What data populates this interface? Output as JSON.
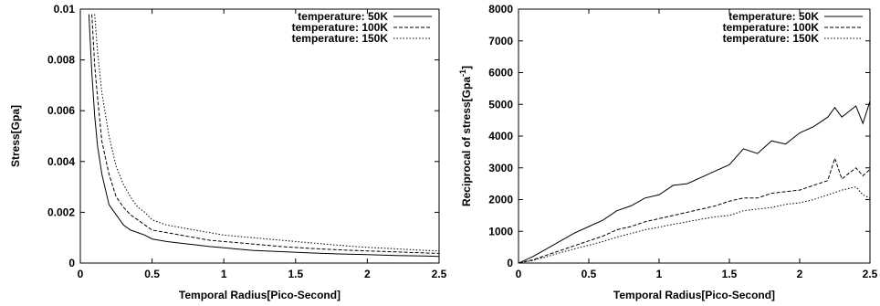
{
  "chart_data": [
    {
      "type": "line",
      "xlabel": "Temporal Radius[Pico-Second]",
      "ylabel": "Stress[Gpa]",
      "xlim": [
        0,
        2.5
      ],
      "ylim": [
        0,
        0.01
      ],
      "xticks": [
        "0",
        "0.5",
        "1",
        "1.5",
        "2",
        "2.5"
      ],
      "yticks": [
        "0",
        "0.002",
        "0.004",
        "0.006",
        "0.008",
        "0.01"
      ],
      "xtick_values": [
        0,
        0.5,
        1,
        1.5,
        2,
        2.5
      ],
      "ytick_values": [
        0,
        0.002,
        0.004,
        0.006,
        0.008,
        0.01
      ],
      "grid": false,
      "legend_position": "top-right",
      "series": [
        {
          "name": "temperature: 50K",
          "dash": "solid",
          "x": [
            0.06,
            0.08,
            0.1,
            0.12,
            0.15,
            0.2,
            0.25,
            0.3,
            0.35,
            0.4,
            0.45,
            0.5,
            0.6,
            0.7,
            0.8,
            0.9,
            1.0,
            1.2,
            1.4,
            1.6,
            1.8,
            2.0,
            2.2,
            2.4,
            2.5
          ],
          "y": [
            0.0098,
            0.0075,
            0.0058,
            0.0046,
            0.0035,
            0.0023,
            0.0019,
            0.0015,
            0.0013,
            0.0012,
            0.0011,
            0.00095,
            0.00085,
            0.00078,
            0.00072,
            0.00065,
            0.0006,
            0.0005,
            0.00045,
            0.0004,
            0.00036,
            0.00033,
            0.0003,
            0.00028,
            0.00026
          ]
        },
        {
          "name": "temperature: 100K",
          "dash": "dashed",
          "x": [
            0.08,
            0.1,
            0.12,
            0.15,
            0.2,
            0.25,
            0.3,
            0.35,
            0.4,
            0.45,
            0.5,
            0.6,
            0.7,
            0.8,
            0.9,
            1.0,
            1.2,
            1.4,
            1.6,
            1.8,
            2.0,
            2.2,
            2.4,
            2.5
          ],
          "y": [
            0.0098,
            0.0078,
            0.0065,
            0.0048,
            0.0035,
            0.0026,
            0.0022,
            0.0019,
            0.0017,
            0.0015,
            0.0013,
            0.0012,
            0.0011,
            0.001,
            0.0009,
            0.00085,
            0.00075,
            0.00065,
            0.00058,
            0.00052,
            0.00048,
            0.00044,
            0.0004,
            0.00038
          ]
        },
        {
          "name": "temperature: 150K",
          "dash": "dotted",
          "x": [
            0.1,
            0.12,
            0.15,
            0.2,
            0.25,
            0.3,
            0.35,
            0.4,
            0.45,
            0.5,
            0.6,
            0.7,
            0.8,
            0.9,
            1.0,
            1.2,
            1.4,
            1.6,
            1.8,
            2.0,
            2.2,
            2.4,
            2.5
          ],
          "y": [
            0.0098,
            0.0083,
            0.0067,
            0.005,
            0.0038,
            0.0031,
            0.0026,
            0.0022,
            0.002,
            0.0017,
            0.0015,
            0.0014,
            0.0013,
            0.0012,
            0.0011,
            0.001,
            0.0009,
            0.0008,
            0.0007,
            0.00062,
            0.00056,
            0.0005,
            0.00048
          ]
        }
      ]
    },
    {
      "type": "line",
      "xlabel": "Temporal Radius[Pico-Second]",
      "ylabel": "Reciprocal of stress[Gpa",
      "ylabel_superscript": "-1",
      "ylabel_suffix": "]",
      "xlim": [
        0,
        2.5
      ],
      "ylim": [
        0,
        8000
      ],
      "xticks": [
        "0",
        "0.5",
        "1",
        "1.5",
        "2",
        "2.5"
      ],
      "yticks": [
        "0",
        "1000",
        "2000",
        "3000",
        "4000",
        "5000",
        "6000",
        "7000",
        "8000"
      ],
      "xtick_values": [
        0,
        0.5,
        1,
        1.5,
        2,
        2.5
      ],
      "ytick_values": [
        0,
        1000,
        2000,
        3000,
        4000,
        5000,
        6000,
        7000,
        8000
      ],
      "grid": false,
      "legend_position": "top-right",
      "series": [
        {
          "name": "temperature: 50K",
          "dash": "solid",
          "x": [
            0,
            0.1,
            0.2,
            0.3,
            0.4,
            0.5,
            0.6,
            0.7,
            0.8,
            0.9,
            1.0,
            1.1,
            1.2,
            1.3,
            1.4,
            1.5,
            1.6,
            1.7,
            1.8,
            1.9,
            2.0,
            2.1,
            2.2,
            2.25,
            2.3,
            2.4,
            2.45,
            2.5
          ],
          "y": [
            0,
            200,
            450,
            700,
            950,
            1150,
            1350,
            1650,
            1800,
            2050,
            2150,
            2450,
            2500,
            2700,
            2900,
            3100,
            3600,
            3450,
            3850,
            3750,
            4100,
            4300,
            4600,
            4900,
            4600,
            4950,
            4400,
            5100
          ]
        },
        {
          "name": "temperature: 100K",
          "dash": "dashed",
          "x": [
            0,
            0.1,
            0.2,
            0.3,
            0.4,
            0.5,
            0.6,
            0.7,
            0.8,
            0.9,
            1.0,
            1.1,
            1.2,
            1.3,
            1.4,
            1.5,
            1.6,
            1.7,
            1.8,
            1.9,
            2.0,
            2.1,
            2.2,
            2.25,
            2.3,
            2.4,
            2.45,
            2.5
          ],
          "y": [
            0,
            100,
            250,
            400,
            550,
            700,
            850,
            1050,
            1150,
            1300,
            1400,
            1500,
            1600,
            1700,
            1800,
            1950,
            2050,
            2050,
            2200,
            2250,
            2300,
            2450,
            2600,
            3300,
            2650,
            3000,
            2750,
            2950
          ]
        },
        {
          "name": "temperature: 150K",
          "dash": "dotted",
          "x": [
            0,
            0.1,
            0.2,
            0.3,
            0.4,
            0.5,
            0.6,
            0.7,
            0.8,
            0.9,
            1.0,
            1.1,
            1.2,
            1.3,
            1.4,
            1.5,
            1.6,
            1.7,
            1.8,
            1.9,
            2.0,
            2.1,
            2.2,
            2.3,
            2.4,
            2.45,
            2.5
          ],
          "y": [
            0,
            80,
            200,
            330,
            450,
            560,
            680,
            820,
            930,
            1050,
            1130,
            1220,
            1300,
            1380,
            1460,
            1500,
            1650,
            1700,
            1750,
            1850,
            1900,
            2000,
            2150,
            2300,
            2400,
            2150,
            2050
          ]
        }
      ]
    }
  ]
}
